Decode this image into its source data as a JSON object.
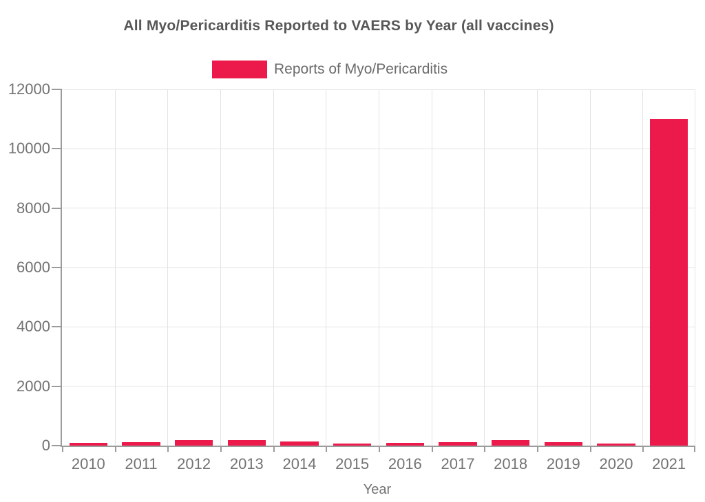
{
  "chart_data": {
    "type": "bar",
    "title": "All Myo/Pericarditis Reported to VAERS by Year (all vaccines)",
    "legend": {
      "label": "Reports of Myo/Pericarditis",
      "position": "top"
    },
    "xlabel": "Year",
    "ylabel": "",
    "categories": [
      "2010",
      "2011",
      "2012",
      "2013",
      "2014",
      "2015",
      "2016",
      "2017",
      "2018",
      "2019",
      "2020",
      "2021"
    ],
    "values": [
      100,
      105,
      180,
      175,
      130,
      65,
      90,
      110,
      190,
      105,
      80,
      11000
    ],
    "ylim": [
      0,
      12000
    ],
    "y_ticks": [
      0,
      2000,
      4000,
      6000,
      8000,
      10000,
      12000
    ],
    "grid": true,
    "legend_position": "top-center",
    "bar_color": "#EC1A4B",
    "axis_color": "#9B9B9B",
    "gridline_color": "#E3E3E3",
    "tick_label_color": "#737373",
    "title_color": "#575757",
    "legend_text_color": "#6B6B6B"
  }
}
